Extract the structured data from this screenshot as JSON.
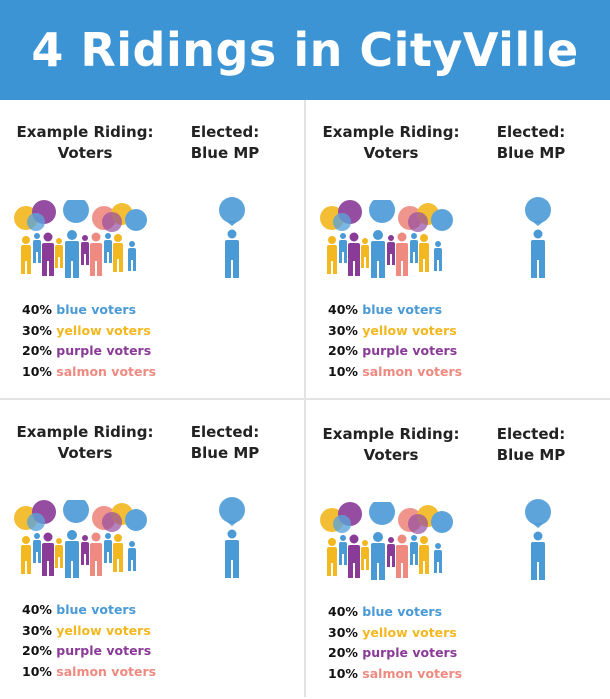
{
  "title": "4 Ridings in CityVille",
  "colors": {
    "banner": "#3d94d4",
    "blue": "#4a9ad6",
    "yellow": "#f3b71f",
    "purple": "#8a3a97",
    "salmon": "#ee8a80"
  },
  "ridings": [
    {
      "heading_line1": "Example Riding:",
      "heading_line2": "Voters",
      "elected_line1": "Elected:",
      "elected_line2": "Blue MP",
      "breakdown": [
        {
          "percent": "40%",
          "label": "blue voters",
          "color": "blue"
        },
        {
          "percent": "30%",
          "label": "yellow voters",
          "color": "yellow"
        },
        {
          "percent": "20%",
          "label": "purple voters",
          "color": "purple"
        },
        {
          "percent": "10%",
          "label": "salmon voters",
          "color": "salmon"
        }
      ]
    },
    {
      "heading_line1": "Example Riding:",
      "heading_line2": "Voters",
      "elected_line1": "Elected:",
      "elected_line2": "Blue MP",
      "breakdown": [
        {
          "percent": "40%",
          "label": "blue voters",
          "color": "blue"
        },
        {
          "percent": "30%",
          "label": "yellow voters",
          "color": "yellow"
        },
        {
          "percent": "20%",
          "label": "purple voters",
          "color": "purple"
        },
        {
          "percent": "10%",
          "label": "salmon voters",
          "color": "salmon"
        }
      ]
    },
    {
      "heading_line1": "Example Riding:",
      "heading_line2": "Voters",
      "elected_line1": "Elected:",
      "elected_line2": "Blue MP",
      "breakdown": [
        {
          "percent": "40%",
          "label": "blue voters",
          "color": "blue"
        },
        {
          "percent": "30%",
          "label": "yellow voters",
          "color": "yellow"
        },
        {
          "percent": "20%",
          "label": "purple voters",
          "color": "purple"
        },
        {
          "percent": "10%",
          "label": "salmon voters",
          "color": "salmon"
        }
      ]
    },
    {
      "heading_line1": "Example Riding:",
      "heading_line2": "Voters",
      "elected_line1": "Elected:",
      "elected_line2": "Blue MP",
      "breakdown": [
        {
          "percent": "40%",
          "label": "blue voters",
          "color": "blue"
        },
        {
          "percent": "30%",
          "label": "yellow voters",
          "color": "yellow"
        },
        {
          "percent": "20%",
          "label": "purple voters",
          "color": "purple"
        },
        {
          "percent": "10%",
          "label": "salmon voters",
          "color": "salmon"
        }
      ]
    }
  ]
}
